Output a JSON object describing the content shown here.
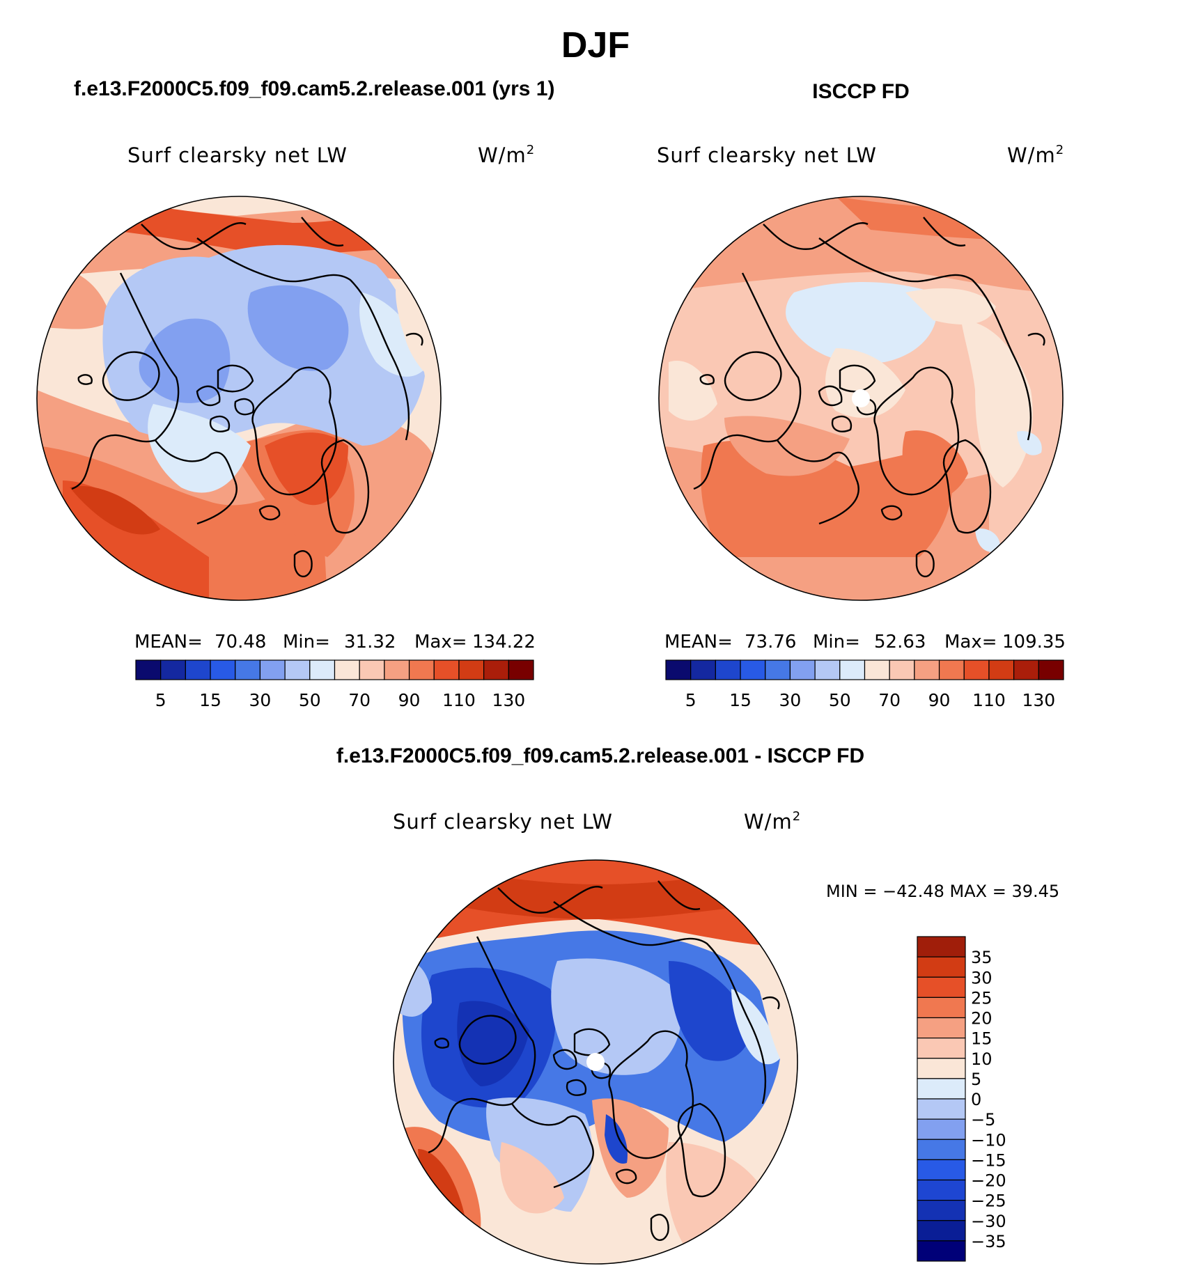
{
  "figure_title": "DJF",
  "panels": [
    {
      "id": "model",
      "header": "f.e13.F2000C5.f09_f09.cam5.2.release.001 (yrs 1)",
      "variable": "Surf clearsky net LW",
      "units_base": "W/m",
      "units_exp": "2",
      "stats": {
        "mean_label": "MEAN=",
        "mean": "70.48",
        "min_label": "Min=",
        "min": "31.32",
        "max_label": "Max=",
        "max": "134.22"
      },
      "colorbar_labels": [
        "5",
        "15",
        "30",
        "50",
        "70",
        "90",
        "110",
        "130"
      ]
    },
    {
      "id": "obs",
      "header": "ISCCP FD",
      "variable": "Surf clearsky net LW",
      "units_base": "W/m",
      "units_exp": "2",
      "stats": {
        "mean_label": "MEAN=",
        "mean": "73.76",
        "min_label": "Min=",
        "min": "52.63",
        "max_label": "Max=",
        "max": "109.35"
      },
      "colorbar_labels": [
        "5",
        "15",
        "30",
        "50",
        "70",
        "90",
        "110",
        "130"
      ]
    }
  ],
  "diff_panel": {
    "header": "f.e13.F2000C5.f09_f09.cam5.2.release.001 - ISCCP FD",
    "variable": "Surf clearsky net LW",
    "units_base": "W/m",
    "units_exp": "2",
    "minmax": "MIN = −42.48 MAX =   39.45",
    "colorbar_labels": [
      "35",
      "30",
      "25",
      "20",
      "15",
      "10",
      "5",
      "0",
      "−5",
      "−10",
      "−15",
      "−20",
      "−25",
      "−30",
      "−35"
    ]
  },
  "chart_data": [
    {
      "type": "heatmap",
      "projection": "north-polar-stereographic",
      "title": "f.e13.F2000C5.f09_f09.cam5.2.release.001 (yrs 1)",
      "variable": "Surf clearsky net LW",
      "units": "W/m2",
      "mean": 70.48,
      "min": 31.32,
      "max": 134.22,
      "contour_levels": [
        5,
        10,
        15,
        20,
        30,
        40,
        50,
        60,
        70,
        80,
        90,
        100,
        110,
        120,
        130
      ],
      "colors": [
        "#0a0a6e",
        "#1428a0",
        "#1e46cd",
        "#285ae6",
        "#4678e6",
        "#82a0f0",
        "#b4c8f5",
        "#dcebfa",
        "#fae6d7",
        "#fac8b4",
        "#f5a082",
        "#f07850",
        "#e65028",
        "#d23c14",
        "#aa1e0a",
        "#780000"
      ]
    },
    {
      "type": "heatmap",
      "projection": "north-polar-stereographic",
      "title": "ISCCP FD",
      "variable": "Surf clearsky net LW",
      "units": "W/m2",
      "mean": 73.76,
      "min": 52.63,
      "max": 109.35,
      "contour_levels": [
        5,
        10,
        15,
        20,
        30,
        40,
        50,
        60,
        70,
        80,
        90,
        100,
        110,
        120,
        130
      ],
      "colors": [
        "#0a0a6e",
        "#1428a0",
        "#1e46cd",
        "#285ae6",
        "#4678e6",
        "#82a0f0",
        "#b4c8f5",
        "#dcebfa",
        "#fae6d7",
        "#fac8b4",
        "#f5a082",
        "#f07850",
        "#e65028",
        "#d23c14",
        "#aa1e0a",
        "#780000"
      ]
    },
    {
      "type": "heatmap",
      "projection": "north-polar-stereographic",
      "title": "f.e13.F2000C5.f09_f09.cam5.2.release.001 - ISCCP FD",
      "variable": "Surf clearsky net LW",
      "units": "W/m2",
      "min": -42.48,
      "max": 39.45,
      "contour_levels": [
        -35,
        -30,
        -25,
        -20,
        -15,
        -10,
        -5,
        0,
        5,
        10,
        15,
        20,
        25,
        30,
        35
      ],
      "colors": [
        "#000078",
        "#0a1e96",
        "#1432b4",
        "#1e46d2",
        "#285ae6",
        "#4678e6",
        "#82a0f0",
        "#b4c8f5",
        "#dcebfa",
        "#fae6d7",
        "#fac8b4",
        "#f5a082",
        "#f07850",
        "#e65028",
        "#d23c14",
        "#a01e0a"
      ]
    }
  ]
}
